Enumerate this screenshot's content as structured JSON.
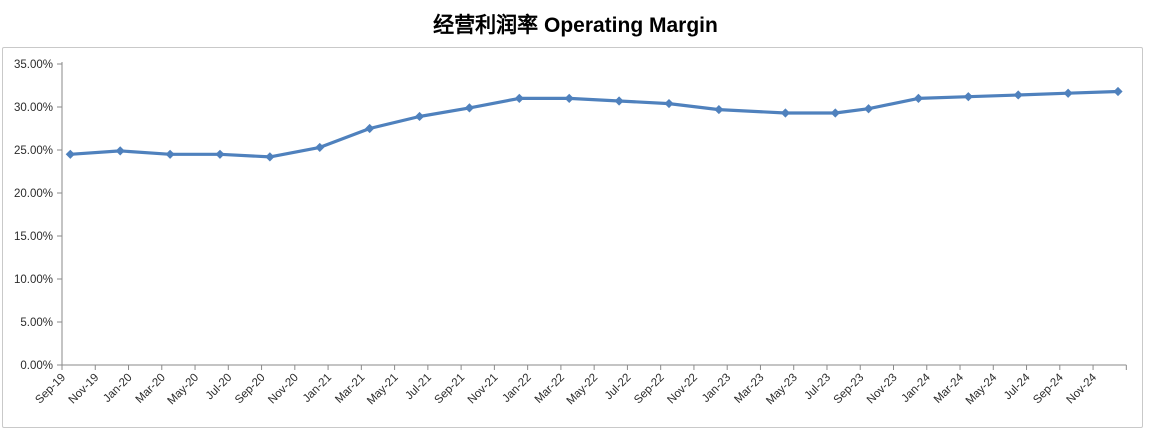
{
  "title": "经营利润率 Operating Margin",
  "colors": {
    "series": "#4F81BD",
    "axis_line": "#8A8A8A",
    "tick_text": "#2b2b2b",
    "title_text": "#000000",
    "chart_border": "#C9C9C9",
    "background": "#FFFFFF"
  },
  "chart_data": {
    "type": "line",
    "title": "经营利润率 Operating Margin",
    "series_name": "Operating Margin",
    "legend": false,
    "grid": false,
    "marker": "diamond",
    "y_axis": {
      "min": 0,
      "max": 35,
      "step": 5,
      "format": "0.00%",
      "ticks": [
        {
          "value": 35,
          "label": "35.00%"
        },
        {
          "value": 30,
          "label": "30.00%"
        },
        {
          "value": 25,
          "label": "25.00%"
        },
        {
          "value": 20,
          "label": "20.00%"
        },
        {
          "value": 15,
          "label": "15.00%"
        },
        {
          "value": 10,
          "label": "10.00%"
        },
        {
          "value": 5,
          "label": "5.00%"
        },
        {
          "value": 0,
          "label": "0.00%"
        }
      ]
    },
    "x_axis": {
      "unit": "months-since-Sep-2019",
      "label_rotation_deg": 45,
      "ticks": [
        {
          "label": "Sep-19",
          "month": 0
        },
        {
          "label": "Nov-19",
          "month": 2
        },
        {
          "label": "Jan-20",
          "month": 4
        },
        {
          "label": "Mar-20",
          "month": 6
        },
        {
          "label": "May-20",
          "month": 8
        },
        {
          "label": "Jul-20",
          "month": 10
        },
        {
          "label": "Sep-20",
          "month": 12
        },
        {
          "label": "Nov-20",
          "month": 14
        },
        {
          "label": "Jan-21",
          "month": 16
        },
        {
          "label": "Mar-21",
          "month": 18
        },
        {
          "label": "May-21",
          "month": 20
        },
        {
          "label": "Jul-21",
          "month": 22
        },
        {
          "label": "Sep-21",
          "month": 24
        },
        {
          "label": "Nov-21",
          "month": 26
        },
        {
          "label": "Jan-22",
          "month": 28
        },
        {
          "label": "Mar-22",
          "month": 30
        },
        {
          "label": "May-22",
          "month": 32
        },
        {
          "label": "Jul-22",
          "month": 34
        },
        {
          "label": "Sep-22",
          "month": 36
        },
        {
          "label": "Nov-22",
          "month": 38
        },
        {
          "label": "Jan-23",
          "month": 40
        },
        {
          "label": "Mar-23",
          "month": 42
        },
        {
          "label": "May-23",
          "month": 44
        },
        {
          "label": "Jul-23",
          "month": 46
        },
        {
          "label": "Sep-23",
          "month": 48
        },
        {
          "label": "Nov-23",
          "month": 50
        },
        {
          "label": "Jan-24",
          "month": 52
        },
        {
          "label": "Mar-24",
          "month": 54
        },
        {
          "label": "May-24",
          "month": 56
        },
        {
          "label": "Jul-24",
          "month": 58
        },
        {
          "label": "Sep-24",
          "month": 60
        },
        {
          "label": "Nov-24",
          "month": 62
        },
        {
          "label": "",
          "month": 64
        }
      ]
    },
    "points": [
      {
        "period": "Sep-19",
        "month": 0.5,
        "value": 24.5
      },
      {
        "period": "Dec-19",
        "month": 3.5,
        "value": 24.9
      },
      {
        "period": "Mar-20",
        "month": 6.5,
        "value": 24.5
      },
      {
        "period": "Jun-20",
        "month": 9.5,
        "value": 24.5
      },
      {
        "period": "Sep-20",
        "month": 12.5,
        "value": 24.2
      },
      {
        "period": "Dec-20",
        "month": 15.5,
        "value": 25.3
      },
      {
        "period": "Mar-21",
        "month": 18.5,
        "value": 27.5
      },
      {
        "period": "Jun-21",
        "month": 21.5,
        "value": 28.9
      },
      {
        "period": "Sep-21",
        "month": 24.5,
        "value": 29.9
      },
      {
        "period": "Dec-21",
        "month": 27.5,
        "value": 31.0
      },
      {
        "period": "Mar-22",
        "month": 30.5,
        "value": 31.0
      },
      {
        "period": "Jun-22",
        "month": 33.5,
        "value": 30.7
      },
      {
        "period": "Sep-22",
        "month": 36.5,
        "value": 30.4
      },
      {
        "period": "Dec-22",
        "month": 39.5,
        "value": 29.7
      },
      {
        "period": "Apr-23",
        "month": 43.5,
        "value": 29.3
      },
      {
        "period": "Jul-23",
        "month": 46.5,
        "value": 29.3
      },
      {
        "period": "Sep-23",
        "month": 48.5,
        "value": 29.8
      },
      {
        "period": "Dec-23",
        "month": 51.5,
        "value": 31.0
      },
      {
        "period": "Mar-24",
        "month": 54.5,
        "value": 31.2
      },
      {
        "period": "Jun-24",
        "month": 57.5,
        "value": 31.4
      },
      {
        "period": "Sep-24",
        "month": 60.5,
        "value": 31.6
      },
      {
        "period": "Dec-24",
        "month": 63.5,
        "value": 31.8
      }
    ]
  }
}
